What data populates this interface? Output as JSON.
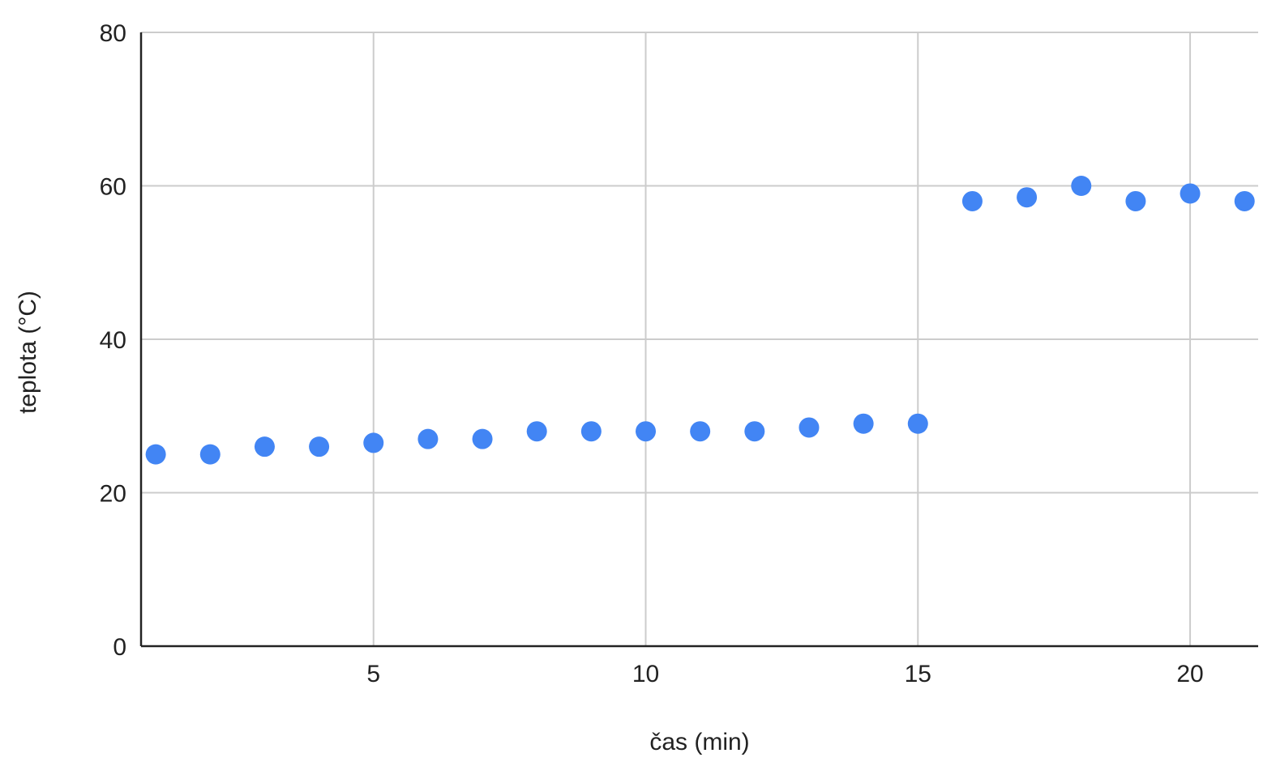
{
  "chart_data": {
    "type": "scatter",
    "title": "",
    "xlabel": "čas (min)",
    "ylabel": "teplota (°C)",
    "xlim": [
      0.73,
      21.25
    ],
    "ylim": [
      0,
      80
    ],
    "x_ticks": [
      5,
      10,
      15,
      20
    ],
    "y_ticks": [
      0,
      20,
      40,
      60,
      80
    ],
    "grid": true,
    "legend": "none",
    "series": [
      {
        "color": "#4285f4",
        "points": [
          {
            "x": 1,
            "y": 25
          },
          {
            "x": 2,
            "y": 25
          },
          {
            "x": 3,
            "y": 26
          },
          {
            "x": 4,
            "y": 26
          },
          {
            "x": 5,
            "y": 26.5
          },
          {
            "x": 6,
            "y": 27
          },
          {
            "x": 7,
            "y": 27
          },
          {
            "x": 8,
            "y": 28
          },
          {
            "x": 9,
            "y": 28
          },
          {
            "x": 10,
            "y": 28
          },
          {
            "x": 11,
            "y": 28
          },
          {
            "x": 12,
            "y": 28
          },
          {
            "x": 13,
            "y": 28.5
          },
          {
            "x": 14,
            "y": 29
          },
          {
            "x": 15,
            "y": 29
          },
          {
            "x": 16,
            "y": 58
          },
          {
            "x": 17,
            "y": 58.5
          },
          {
            "x": 18,
            "y": 60
          },
          {
            "x": 19,
            "y": 58
          },
          {
            "x": 20,
            "y": 59
          },
          {
            "x": 21,
            "y": 58
          }
        ]
      }
    ]
  }
}
